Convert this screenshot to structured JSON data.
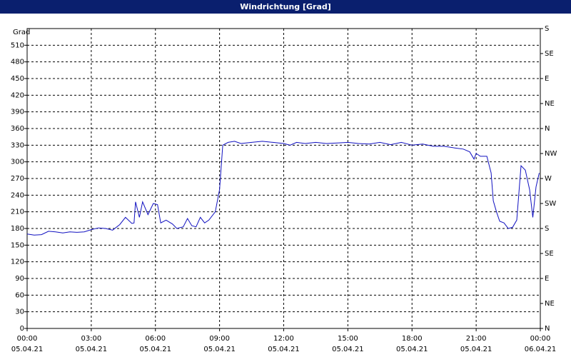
{
  "chart_data": {
    "type": "line",
    "title": "Windrichtung [Grad]",
    "y_label": "Grad",
    "xlim": [
      0,
      24
    ],
    "ylim": [
      0,
      540
    ],
    "y2lim": [
      0,
      540
    ],
    "xticks": [
      {
        "value": 0,
        "label": "00:00"
      },
      {
        "value": 3,
        "label": "03:00"
      },
      {
        "value": 6,
        "label": "06:00"
      },
      {
        "value": 9,
        "label": "09:00"
      },
      {
        "value": 12,
        "label": "12:00"
      },
      {
        "value": 15,
        "label": "15:00"
      },
      {
        "value": 18,
        "label": "18:00"
      },
      {
        "value": 21,
        "label": "21:00"
      },
      {
        "value": 24,
        "label": "00:00"
      }
    ],
    "xtick_dates": [
      "05.04.21",
      "05.04.21",
      "05.04.21",
      "05.04.21",
      "05.04.21",
      "05.04.21",
      "05.04.21",
      "05.04.21",
      "06.04.21"
    ],
    "yticks": [
      0,
      30,
      60,
      90,
      120,
      150,
      180,
      210,
      240,
      270,
      300,
      330,
      360,
      390,
      420,
      450,
      480,
      510
    ],
    "y2ticks": [
      {
        "value": 0,
        "label": "N"
      },
      {
        "value": 45,
        "label": "NE"
      },
      {
        "value": 90,
        "label": "E"
      },
      {
        "value": 135,
        "label": "SE"
      },
      {
        "value": 180,
        "label": "S"
      },
      {
        "value": 225,
        "label": "SW"
      },
      {
        "value": 270,
        "label": "W"
      },
      {
        "value": 315,
        "label": "NW"
      },
      {
        "value": 360,
        "label": "N"
      },
      {
        "value": 405,
        "label": "NE"
      },
      {
        "value": 450,
        "label": "E"
      },
      {
        "value": 495,
        "label": "SE"
      },
      {
        "value": 540,
        "label": "S"
      }
    ],
    "grid": true,
    "series": [
      {
        "color": "#1010c0",
        "x": [
          0,
          0.33,
          0.67,
          1,
          1.33,
          1.67,
          2,
          2.33,
          2.67,
          3,
          3.33,
          3.67,
          4,
          4.33,
          4.6,
          4.9,
          5.0,
          5.07,
          5.25,
          5.4,
          5.65,
          5.9,
          6.1,
          6.25,
          6.5,
          6.8,
          7.0,
          7.3,
          7.5,
          7.7,
          7.9,
          8.1,
          8.3,
          8.5,
          8.8,
          9.0,
          9.15,
          9.4,
          9.7,
          10,
          10.5,
          11,
          11.5,
          12,
          12.3,
          12.6,
          13,
          13.5,
          14,
          14.5,
          15,
          15.5,
          16,
          16.5,
          17,
          17.5,
          18,
          18.5,
          19,
          19.5,
          20,
          20.4,
          20.7,
          20.9,
          21.0,
          21.2,
          21.5,
          21.7,
          21.8,
          21.95,
          22.1,
          22.3,
          22.5,
          22.7,
          22.9,
          23.1,
          23.3,
          23.5,
          23.65,
          23.8,
          23.95
        ],
        "values": [
          170,
          168,
          169,
          175,
          174,
          172,
          174,
          173,
          174,
          178,
          181,
          180,
          177,
          187,
          200,
          189,
          190,
          228,
          200,
          228,
          205,
          225,
          223,
          190,
          195,
          188,
          180,
          183,
          198,
          185,
          183,
          200,
          190,
          195,
          210,
          250,
          330,
          335,
          337,
          333,
          335,
          337,
          335,
          333,
          330,
          335,
          333,
          335,
          333,
          334,
          335,
          333,
          332,
          335,
          331,
          335,
          330,
          332,
          328,
          328,
          325,
          323,
          318,
          305,
          315,
          310,
          310,
          280,
          230,
          210,
          193,
          190,
          180,
          182,
          195,
          293,
          285,
          250,
          200,
          255,
          280
        ]
      }
    ]
  }
}
